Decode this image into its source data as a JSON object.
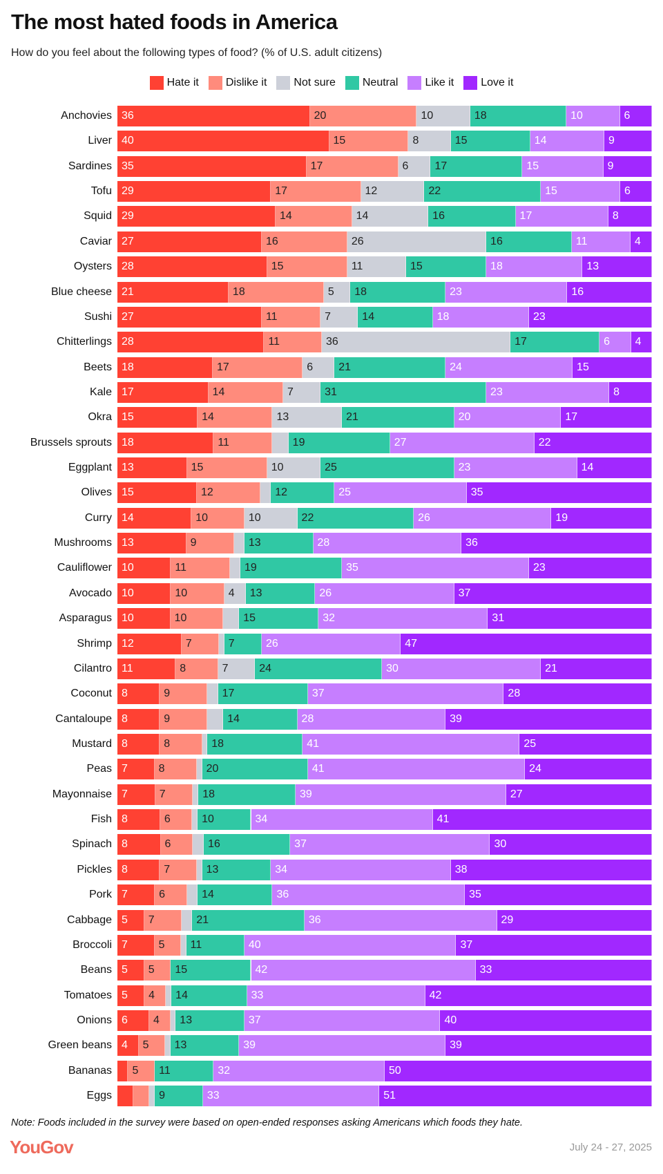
{
  "title": "The most hated foods in America",
  "subtitle": "How do you feel about the following types of food? (% of U.S. adult citizens)",
  "note": "Note: Foods included in the survey were based on open-ended responses asking Americans which foods they hate.",
  "logo": "YouGov",
  "date": "July 24 - 27, 2025",
  "chart_data": {
    "type": "bar",
    "orientation": "horizontal-stacked-100",
    "legend_position": "top",
    "grid": false,
    "xlim": [
      0,
      100
    ],
    "series": [
      {
        "name": "Hate it",
        "color": "#FF4133",
        "label_color": "#ffffff"
      },
      {
        "name": "Dislike it",
        "color": "#FF8B7C",
        "label_color": "#222222"
      },
      {
        "name": "Not sure",
        "color": "#CDD0D9",
        "label_color": "#222222"
      },
      {
        "name": "Neutral",
        "color": "#30C8A4",
        "label_color": "#222222"
      },
      {
        "name": "Like it",
        "color": "#C67EFF",
        "label_color": "#ffffff"
      },
      {
        "name": "Love it",
        "color": "#A128FF",
        "label_color": "#ffffff"
      }
    ],
    "categories": [
      "Anchovies",
      "Liver",
      "Sardines",
      "Tofu",
      "Squid",
      "Caviar",
      "Oysters",
      "Blue cheese",
      "Sushi",
      "Chitterlings",
      "Beets",
      "Kale",
      "Okra",
      "Brussels sprouts",
      "Eggplant",
      "Olives",
      "Curry",
      "Mushrooms",
      "Cauliflower",
      "Avocado",
      "Asparagus",
      "Shrimp",
      "Cilantro",
      "Coconut",
      "Cantaloupe",
      "Mustard",
      "Peas",
      "Mayonnaise",
      "Fish",
      "Spinach",
      "Pickles",
      "Pork",
      "Cabbage",
      "Broccoli",
      "Beans",
      "Tomatoes",
      "Onions",
      "Green beans",
      "Bananas",
      "Eggs"
    ],
    "values": [
      [
        36,
        20,
        10,
        18,
        10,
        6
      ],
      [
        40,
        15,
        8,
        15,
        14,
        9
      ],
      [
        35,
        17,
        6,
        17,
        15,
        9
      ],
      [
        29,
        17,
        12,
        22,
        15,
        6
      ],
      [
        29,
        14,
        14,
        16,
        17,
        8
      ],
      [
        27,
        16,
        26,
        16,
        11,
        4
      ],
      [
        28,
        15,
        11,
        15,
        18,
        13
      ],
      [
        21,
        18,
        5,
        18,
        23,
        16
      ],
      [
        27,
        11,
        7,
        14,
        18,
        23
      ],
      [
        28,
        11,
        36,
        17,
        6,
        4
      ],
      [
        18,
        17,
        6,
        21,
        24,
        15
      ],
      [
        17,
        14,
        7,
        31,
        23,
        8
      ],
      [
        15,
        14,
        13,
        21,
        20,
        17
      ],
      [
        18,
        11,
        3,
        19,
        27,
        22
      ],
      [
        13,
        15,
        10,
        25,
        23,
        14
      ],
      [
        15,
        12,
        2,
        12,
        25,
        35
      ],
      [
        14,
        10,
        10,
        22,
        26,
        19
      ],
      [
        13,
        9,
        2,
        13,
        28,
        36
      ],
      [
        10,
        11,
        2,
        19,
        35,
        23
      ],
      [
        10,
        10,
        4,
        13,
        26,
        37
      ],
      [
        10,
        10,
        3,
        15,
        32,
        31
      ],
      [
        12,
        7,
        1,
        7,
        26,
        47
      ],
      [
        11,
        8,
        7,
        24,
        30,
        21
      ],
      [
        8,
        9,
        2,
        17,
        37,
        28
      ],
      [
        8,
        9,
        3,
        14,
        28,
        39
      ],
      [
        8,
        8,
        1,
        18,
        41,
        25
      ],
      [
        7,
        8,
        1,
        20,
        41,
        24
      ],
      [
        7,
        7,
        1,
        18,
        39,
        27
      ],
      [
        8,
        6,
        1,
        10,
        34,
        41
      ],
      [
        8,
        6,
        2,
        16,
        37,
        30
      ],
      [
        8,
        7,
        1,
        13,
        34,
        38
      ],
      [
        7,
        6,
        2,
        14,
        36,
        35
      ],
      [
        5,
        7,
        2,
        21,
        36,
        29
      ],
      [
        7,
        5,
        1,
        11,
        40,
        37
      ],
      [
        5,
        5,
        0,
        15,
        42,
        33
      ],
      [
        5,
        4,
        1,
        14,
        33,
        42
      ],
      [
        6,
        4,
        1,
        13,
        37,
        40
      ],
      [
        4,
        5,
        1,
        13,
        39,
        39
      ],
      [
        2,
        5,
        0,
        11,
        32,
        50
      ],
      [
        3,
        3,
        1,
        9,
        33,
        51
      ]
    ]
  }
}
